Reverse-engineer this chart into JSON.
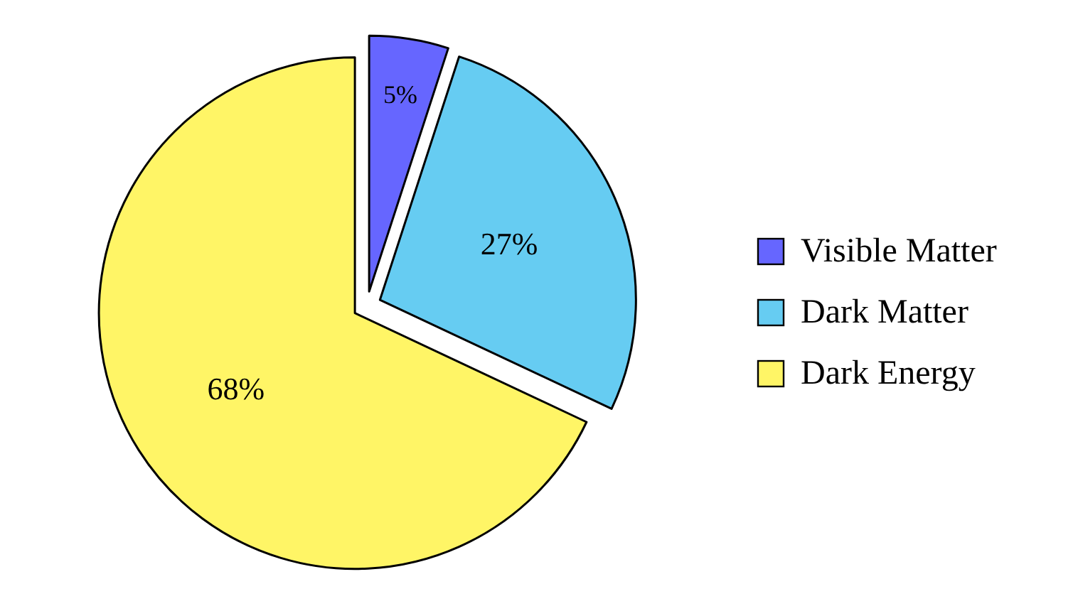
{
  "chart_data": {
    "type": "pie",
    "categories": [
      "Visible Matter",
      "Dark Matter",
      "Dark Energy"
    ],
    "values": [
      5,
      27,
      68
    ],
    "value_labels": [
      "5%",
      "27%",
      "68%"
    ],
    "colors": [
      "#6666ff",
      "#66ccf2",
      "#fff566"
    ],
    "legend": "right"
  }
}
